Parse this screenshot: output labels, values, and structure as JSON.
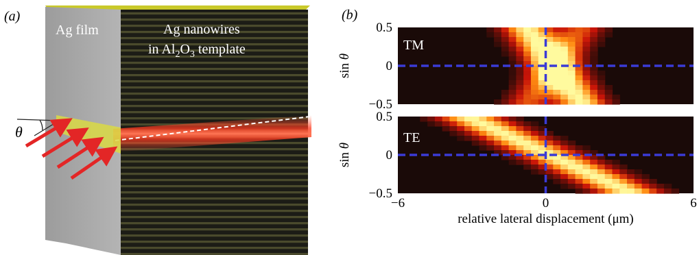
{
  "panel_a": {
    "label": "(a)",
    "film_label": "Ag film",
    "nanowire_label_line1": "Ag nanowires",
    "nanowire_label_line2_prefix": "in Al",
    "sub_2": "2",
    "nanowire_label_line2_mid": "O",
    "sub_3": "3",
    "nanowire_label_line2_suffix": " template",
    "angle_symbol": "θ",
    "colors": {
      "film": "#a9a9a9",
      "nanowire_dark": "#1c1c16",
      "nanowire_stripe": "#4a4a2c",
      "top_face": "#c9c92a",
      "beam": "#e02020",
      "arrow": "#e32626",
      "slit": "#d9d944"
    }
  },
  "panel_b": {
    "label": "(b)",
    "ylabel_prefix": "sin ",
    "ylabel_symbol": "θ",
    "xlabel": "relative lateral displacement (μm)",
    "xtick_labels": [
      "−6",
      "0",
      "6"
    ],
    "ytick_labels": [
      "0.5",
      "0",
      "−0.5"
    ],
    "colors": {
      "background": "#1a0a08",
      "guide_line": "#3b3bd6"
    }
  },
  "chart_data": [
    {
      "type": "heatmap",
      "name": "TM",
      "xlabel": "relative lateral displacement (μm)",
      "ylabel": "sin θ",
      "xlim": [
        -6,
        6
      ],
      "ylim": [
        -0.5,
        0.5
      ],
      "xticks": [
        -6,
        0,
        6
      ],
      "yticks": [
        0.5,
        0,
        -0.5
      ],
      "guide_lines": {
        "x": 0,
        "y": 0
      },
      "ridges": [
        {
          "at_sin_theta_0.5": -0.8,
          "at_sin_theta_-0.5": 1.5,
          "peak_intensity": 1.0,
          "width_um": 1.0
        },
        {
          "at_sin_theta_0.5": 1.5,
          "at_sin_theta_-0.5": -0.8,
          "peak_intensity": 0.55,
          "width_um": 0.9
        }
      ],
      "colormap": "hot"
    },
    {
      "type": "heatmap",
      "name": "TE",
      "xlabel": "relative lateral displacement (μm)",
      "ylabel": "sin θ",
      "xlim": [
        -6,
        6
      ],
      "ylim": [
        -0.5,
        0.5
      ],
      "xticks": [
        -6,
        0,
        6
      ],
      "yticks": [
        0.5,
        0,
        -0.5
      ],
      "guide_lines": {
        "x": 0,
        "y": 0
      },
      "ridges": [
        {
          "at_sin_theta_0.5": -3.2,
          "at_sin_theta_-0.5": 3.5,
          "peak_intensity": 1.0,
          "width_um": 1.3
        }
      ],
      "colormap": "hot"
    }
  ]
}
